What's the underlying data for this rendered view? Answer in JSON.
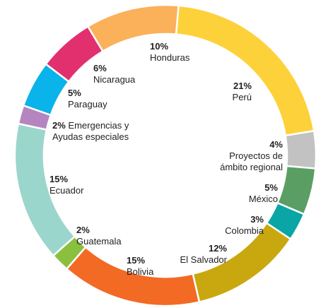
{
  "chart_data": {
    "type": "donut",
    "categories": [
      "Perú",
      "Proyectos de ámbito regional",
      "México",
      "Colombia",
      "El Salvador",
      "Bolivia",
      "Guatemala",
      "Ecuador",
      "Emergencias y Ayudas especiales",
      "Paraguay",
      "Nicaragua",
      "Honduras"
    ],
    "values": [
      21,
      4,
      5,
      3,
      12,
      15,
      2,
      15,
      2,
      5,
      6,
      10
    ],
    "value_labels": [
      "21%",
      "4%",
      "5%",
      "3%",
      "12%",
      "15%",
      "2%",
      "15%",
      "2%",
      "5%",
      "6%",
      "10%"
    ],
    "colors": [
      "#fdd13a",
      "#c2c2c2",
      "#5a9e64",
      "#0aa5a5",
      "#c9a70e",
      "#f26a24",
      "#8bbf3f",
      "#9ad6cc",
      "#b585c0",
      "#0ab4ea",
      "#e2306f",
      "#fbb05a"
    ]
  }
}
